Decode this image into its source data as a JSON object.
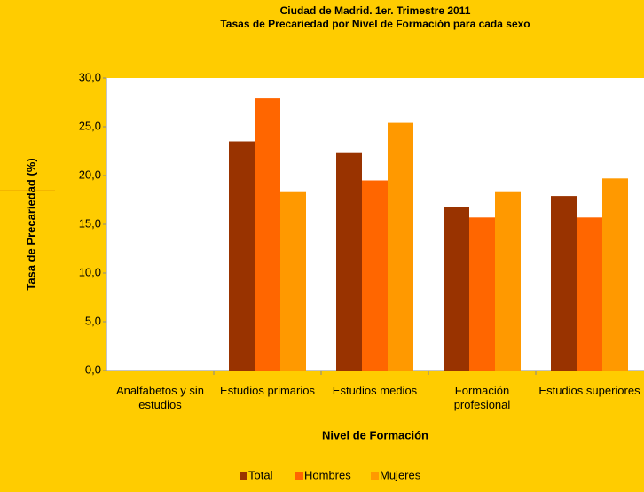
{
  "chart_data": {
    "type": "bar",
    "title": "Ciudad de Madrid. 1er. Trimestre 2011",
    "subtitle": "Tasas de Precariedad por Nivel de Formación para cada sexo",
    "x_label": "Nivel de Formación",
    "y_label": "Tasa de Precariedad (%)",
    "categories": [
      "Analfabetos y sin estudios",
      "Estudios primarios",
      "Estudios medios",
      "Formación profesional",
      "Estudios superiores"
    ],
    "series": [
      {
        "name": "Total",
        "color": "#993300",
        "values": [
          0,
          23.5,
          22.3,
          16.8,
          17.9
        ]
      },
      {
        "name": "Hombres",
        "color": "#FF6600",
        "values": [
          0,
          27.9,
          19.5,
          15.7,
          15.7
        ]
      },
      {
        "name": "Mujeres",
        "color": "#FF9900",
        "values": [
          0,
          18.3,
          25.4,
          18.3,
          19.7
        ]
      }
    ],
    "ylim": [
      0,
      30
    ],
    "yticks": [
      {
        "value": 0,
        "label": "0,0"
      },
      {
        "value": 5,
        "label": "5,0"
      },
      {
        "value": 10,
        "label": "10,0"
      },
      {
        "value": 15,
        "label": "15,0"
      },
      {
        "value": 20,
        "label": "20,0"
      },
      {
        "value": 25,
        "label": "25,0"
      },
      {
        "value": 30,
        "label": "30,0"
      }
    ],
    "grid": false,
    "legend": "bottom"
  }
}
